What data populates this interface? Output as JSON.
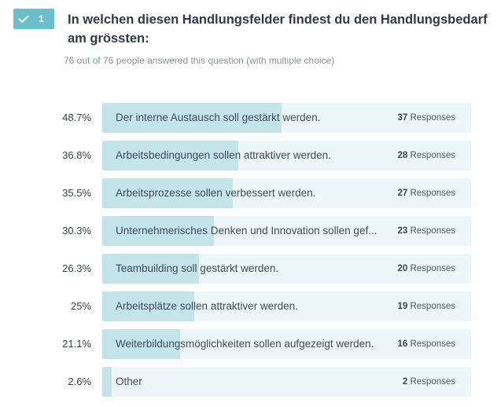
{
  "question": {
    "number": "1",
    "title": "In welchen diesen Handlungsfelder findest du den Handlungsbedarf am grössten:",
    "meta": "76 out of 76 people answered this question (with multiple choice)",
    "check_icon": "check-icon",
    "badge_color": "#6cbfc9"
  },
  "answers": [
    {
      "percent": "48.7%",
      "value": 48.7,
      "label": "Der interne Austausch soll gestärkt werden.",
      "count": "37",
      "responses_label": "Responses"
    },
    {
      "percent": "36.8%",
      "value": 36.8,
      "label": "Arbeitsbedingungen sollen attraktiver werden.",
      "count": "28",
      "responses_label": "Responses"
    },
    {
      "percent": "35.5%",
      "value": 35.5,
      "label": "Arbeitsprozesse sollen verbessert werden.",
      "count": "27",
      "responses_label": "Responses"
    },
    {
      "percent": "30.3%",
      "value": 30.3,
      "label": "Unternehmerisches Denken und Innovation sollen gef...",
      "count": "23",
      "responses_label": "Responses"
    },
    {
      "percent": "26.3%",
      "value": 26.3,
      "label": "Teambuilding soll gestärkt werden.",
      "count": "20",
      "responses_label": "Responses"
    },
    {
      "percent": "25%",
      "value": 25,
      "label": "Arbeitsplätze sollen attraktiver werden.",
      "count": "19",
      "responses_label": "Responses"
    },
    {
      "percent": "21.1%",
      "value": 21.1,
      "label": "Weiterbildungsmöglichkeiten sollen aufgezeigt werden.",
      "count": "16",
      "responses_label": "Responses"
    },
    {
      "percent": "2.6%",
      "value": 2.6,
      "label": "Other",
      "count": "2",
      "responses_label": "Responses"
    }
  ],
  "colors": {
    "track": "#edf7f9",
    "fill": "#c3e5ea"
  }
}
